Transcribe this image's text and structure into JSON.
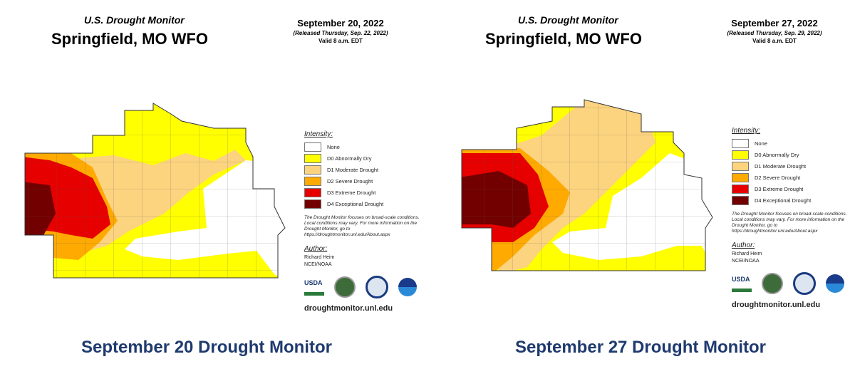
{
  "colors": {
    "none": "#ffffff",
    "d0": "#ffff00",
    "d1": "#fcd37f",
    "d2": "#ffaa00",
    "d3": "#e60000",
    "d4": "#730000",
    "caption": "#1f3a6e"
  },
  "panels": [
    {
      "title": "U.S. Drought Monitor",
      "region": "Springfield, MO WFO",
      "date": "September 20, 2022",
      "released": "(Released Thursday, Sep. 22, 2022)",
      "valid": "Valid 8 a.m. EDT",
      "caption": "September 20 Drought Monitor"
    },
    {
      "title": "U.S. Drought Monitor",
      "region": "Springfield, MO WFO",
      "date": "September 27, 2022",
      "released": "(Released Thursday, Sep. 29, 2022)",
      "valid": "Valid 8 a.m. EDT",
      "caption": "September 27 Drought Monitor"
    }
  ],
  "legend": {
    "heading": "Intensity:",
    "items": [
      {
        "label": "None",
        "color": "#ffffff"
      },
      {
        "label": "D0 Abnormally Dry",
        "color": "#ffff00"
      },
      {
        "label": "D1 Moderate Drought",
        "color": "#fcd37f"
      },
      {
        "label": "D2 Severe Drought",
        "color": "#ffaa00"
      },
      {
        "label": "D3 Extreme Drought",
        "color": "#e60000"
      },
      {
        "label": "D4 Exceptional Drought",
        "color": "#730000"
      }
    ],
    "note": "The Drought Monitor focuses on broad-scale conditions. Local conditions may vary. For more information on the Drought Monitor, go to https://droughtmonitor.unl.edu/About.aspx",
    "author_heading": "Author:",
    "author": "Richard Heim",
    "org": "NCEI/NOAA",
    "logos": [
      "USDA",
      "NDMC",
      "DOC",
      "NOAA"
    ],
    "url": "droughtmonitor.unl.edu"
  }
}
